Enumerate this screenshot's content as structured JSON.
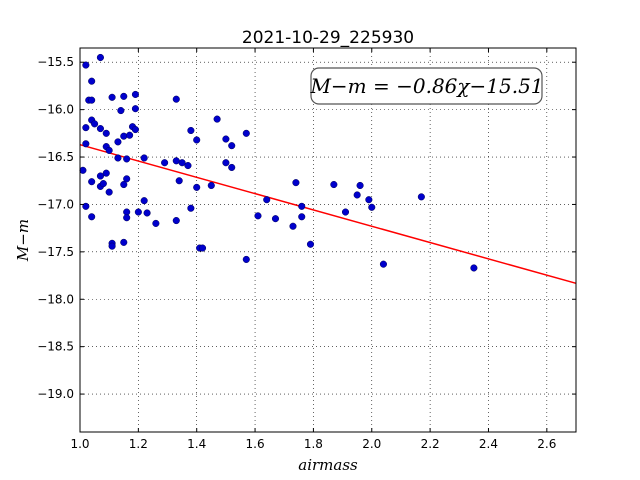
{
  "chart_data": {
    "type": "scatter",
    "title": "2021-10-29_225930",
    "xlabel": "airmass",
    "ylabel": "M−m",
    "xlim": [
      1.0,
      2.7
    ],
    "ylim": [
      -19.4,
      -15.35
    ],
    "y_inverted": true,
    "grid": true,
    "x_ticks": [
      1.0,
      1.2,
      1.4,
      1.6,
      1.8,
      2.0,
      2.2,
      2.4,
      2.6
    ],
    "x_tick_labels": [
      "1.0",
      "1.2",
      "1.4",
      "1.6",
      "1.8",
      "2.0",
      "2.2",
      "2.4",
      "2.6"
    ],
    "y_ticks": [
      -15.5,
      -16.0,
      -16.5,
      -17.0,
      -17.5,
      -18.0,
      -18.5,
      -19.0
    ],
    "y_tick_labels": [
      "−15.5",
      "−16.0",
      "−16.5",
      "−17.0",
      "−17.5",
      "−18.0",
      "−18.5",
      "−19.0"
    ],
    "annotation": "M−m = −0.86χ−15.51",
    "annotation_position": "top-right",
    "fit": {
      "slope": -0.86,
      "intercept": -15.51,
      "color": "#ff0000"
    },
    "marker_color": "#0000cc",
    "points": [
      [
        1.02,
        -15.53
      ],
      [
        1.07,
        -15.45
      ],
      [
        1.04,
        -15.7
      ],
      [
        1.03,
        -15.9
      ],
      [
        1.04,
        -15.9
      ],
      [
        1.11,
        -15.87
      ],
      [
        1.15,
        -15.86
      ],
      [
        1.19,
        -15.84
      ],
      [
        1.14,
        -16.01
      ],
      [
        1.19,
        -15.99
      ],
      [
        1.04,
        -16.11
      ],
      [
        1.05,
        -16.15
      ],
      [
        1.02,
        -16.19
      ],
      [
        1.07,
        -16.2
      ],
      [
        1.09,
        -16.25
      ],
      [
        1.15,
        -16.28
      ],
      [
        1.17,
        -16.27
      ],
      [
        1.18,
        -16.18
      ],
      [
        1.19,
        -16.21
      ],
      [
        1.13,
        -16.34
      ],
      [
        1.02,
        -16.36
      ],
      [
        1.09,
        -16.39
      ],
      [
        1.1,
        -16.43
      ],
      [
        1.13,
        -16.51
      ],
      [
        1.16,
        -16.52
      ],
      [
        1.22,
        -16.51
      ],
      [
        1.29,
        -16.56
      ],
      [
        1.33,
        -16.54
      ],
      [
        1.35,
        -16.56
      ],
      [
        1.37,
        -16.59
      ],
      [
        1.01,
        -16.64
      ],
      [
        1.07,
        -16.7
      ],
      [
        1.09,
        -16.67
      ],
      [
        1.04,
        -16.76
      ],
      [
        1.07,
        -16.81
      ],
      [
        1.08,
        -16.78
      ],
      [
        1.1,
        -16.87
      ],
      [
        1.15,
        -16.79
      ],
      [
        1.16,
        -16.73
      ],
      [
        1.22,
        -16.96
      ],
      [
        1.33,
        -15.89
      ],
      [
        1.38,
        -16.22
      ],
      [
        1.4,
        -16.32
      ],
      [
        1.47,
        -16.1
      ],
      [
        1.5,
        -16.31
      ],
      [
        1.52,
        -16.38
      ],
      [
        1.57,
        -16.25
      ],
      [
        1.34,
        -16.75
      ],
      [
        1.4,
        -16.82
      ],
      [
        1.45,
        -16.8
      ],
      [
        1.5,
        -16.56
      ],
      [
        1.52,
        -16.61
      ],
      [
        1.02,
        -17.02
      ],
      [
        1.04,
        -17.13
      ],
      [
        1.16,
        -17.08
      ],
      [
        1.16,
        -17.14
      ],
      [
        1.2,
        -17.08
      ],
      [
        1.23,
        -17.09
      ],
      [
        1.26,
        -17.2
      ],
      [
        1.33,
        -17.17
      ],
      [
        1.38,
        -17.04
      ],
      [
        1.11,
        -17.41
      ],
      [
        1.11,
        -17.44
      ],
      [
        1.15,
        -17.4
      ],
      [
        1.41,
        -17.46
      ],
      [
        1.42,
        -17.46
      ],
      [
        1.57,
        -17.58
      ],
      [
        1.61,
        -17.12
      ],
      [
        1.64,
        -16.95
      ],
      [
        1.67,
        -17.15
      ],
      [
        1.73,
        -17.23
      ],
      [
        1.74,
        -16.77
      ],
      [
        1.76,
        -17.02
      ],
      [
        1.76,
        -17.13
      ],
      [
        1.79,
        -17.42
      ],
      [
        1.87,
        -16.79
      ],
      [
        1.91,
        -17.08
      ],
      [
        1.95,
        -16.9
      ],
      [
        1.96,
        -16.8
      ],
      [
        1.99,
        -16.95
      ],
      [
        2.0,
        -17.03
      ],
      [
        2.04,
        -17.63
      ],
      [
        2.17,
        -16.92
      ],
      [
        2.35,
        -17.67
      ]
    ]
  }
}
